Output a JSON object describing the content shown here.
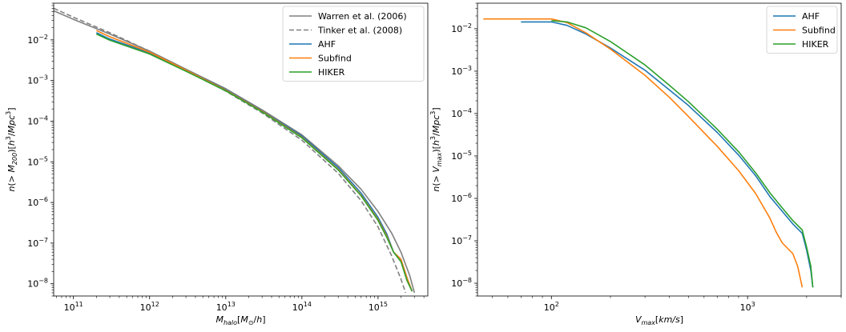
{
  "chart_data": [
    {
      "type": "line",
      "xlabel": {
        "base": "M",
        "sub": "halo",
        "rest": "[M",
        "sub2": "⊙",
        "tail": "/h]"
      },
      "ylabel": {
        "pre": "n(> M",
        "sub": "200",
        "mid": ")[h",
        "sup": "3",
        "post": "/Mpc",
        "sup2": "3",
        "end": "]"
      },
      "xscale": "log",
      "yscale": "log",
      "xlim": [
        55000000000.0,
        4500000000000000.0
      ],
      "ylim": [
        5e-09,
        0.08
      ],
      "xticks": [
        {
          "value": 100000000000.0,
          "base": "10",
          "exp": "11"
        },
        {
          "value": 1000000000000.0,
          "base": "10",
          "exp": "12"
        },
        {
          "value": 10000000000000.0,
          "base": "10",
          "exp": "13"
        },
        {
          "value": 100000000000000.0,
          "base": "10",
          "exp": "14"
        },
        {
          "value": 1000000000000000.0,
          "base": "10",
          "exp": "15"
        }
      ],
      "yticks": [
        {
          "value": 1e-08,
          "base": "10",
          "exp": "−8"
        },
        {
          "value": 1e-07,
          "base": "10",
          "exp": "−7"
        },
        {
          "value": 1e-06,
          "base": "10",
          "exp": "−6"
        },
        {
          "value": 1e-05,
          "base": "10",
          "exp": "−5"
        },
        {
          "value": 0.0001,
          "base": "10",
          "exp": "−4"
        },
        {
          "value": 0.001,
          "base": "10",
          "exp": "−3"
        },
        {
          "value": 0.01,
          "base": "10",
          "exp": "−2"
        }
      ],
      "legend": "top-right",
      "series": [
        {
          "name": "Warren et al. (2006)",
          "color": "#808080",
          "dash": "solid",
          "x": [
            55000000000.0,
            100000000000.0,
            300000000000.0,
            1000000000000.0,
            3000000000000.0,
            10000000000000.0,
            30000000000000.0,
            100000000000000.0,
            300000000000000.0,
            600000000000000.0,
            1000000000000000.0,
            1500000000000000.0,
            2000000000000000.0,
            2600000000000000.0,
            3000000000000000.0
          ],
          "y": [
            0.052,
            0.032,
            0.014,
            0.0053,
            0.0019,
            0.00063,
            0.00019,
            4.6e-05,
            8e-06,
            2.1e-06,
            6e-07,
            1.8e-07,
            6e-08,
            1.6e-08,
            6e-09
          ]
        },
        {
          "name": "Tinker et al. (2008)",
          "color": "#808080",
          "dash": "dashed",
          "x": [
            55000000000.0,
            100000000000.0,
            300000000000.0,
            1000000000000.0,
            3000000000000.0,
            10000000000000.0,
            30000000000000.0,
            100000000000000.0,
            300000000000000.0,
            600000000000000.0,
            1000000000000000.0,
            1500000000000000.0,
            2000000000000000.0,
            2300000000000000.0
          ],
          "y": [
            0.06,
            0.036,
            0.015,
            0.0053,
            0.0018,
            0.00055,
            0.00016,
            3.4e-05,
            5.2e-06,
            1.1e-06,
            2.5e-07,
            5e-08,
            1.3e-08,
            6e-09
          ]
        },
        {
          "name": "AHF",
          "color": "#1f77b4",
          "dash": "solid",
          "x": [
            200000000000.0,
            300000000000.0,
            1000000000000.0,
            3000000000000.0,
            10000000000000.0,
            30000000000000.0,
            100000000000000.0,
            300000000000000.0,
            600000000000000.0,
            1000000000000000.0,
            1300000000000000.0,
            1600000000000000.0,
            2000000000000000.0,
            2400000000000000.0,
            2800000000000000.0
          ],
          "y": [
            0.015,
            0.0105,
            0.0048,
            0.0018,
            0.0006,
            0.00018,
            4.3e-05,
            7.2e-06,
            1.7e-06,
            4.3e-07,
            1.7e-07,
            6e-08,
            4e-08,
            1.4e-08,
            6.5e-09
          ]
        },
        {
          "name": "Subfind",
          "color": "#ff7f0e",
          "dash": "solid",
          "x": [
            200000000000.0,
            300000000000.0,
            1000000000000.0,
            3000000000000.0,
            10000000000000.0,
            30000000000000.0,
            100000000000000.0,
            300000000000000.0,
            600000000000000.0,
            1000000000000000.0,
            1300000000000000.0,
            1600000000000000.0,
            2000000000000000.0,
            2400000000000000.0,
            2800000000000000.0
          ],
          "y": [
            0.017,
            0.012,
            0.005,
            0.0018,
            0.00058,
            0.000175,
            4e-05,
            6.5e-06,
            1.5e-06,
            3.8e-07,
            1.5e-07,
            6e-08,
            4e-08,
            1.4e-08,
            6.5e-09
          ]
        },
        {
          "name": "HIKER",
          "color": "#2ca02c",
          "dash": "solid",
          "x": [
            200000000000.0,
            300000000000.0,
            1000000000000.0,
            3000000000000.0,
            10000000000000.0,
            30000000000000.0,
            100000000000000.0,
            300000000000000.0,
            600000000000000.0,
            1000000000000000.0,
            1300000000000000.0,
            1600000000000000.0,
            2000000000000000.0,
            2400000000000000.0,
            2800000000000000.0
          ],
          "y": [
            0.014,
            0.0098,
            0.0045,
            0.0017,
            0.00056,
            0.00017,
            3.9e-05,
            6.3e-06,
            1.45e-06,
            3.6e-07,
            1.4e-07,
            6e-08,
            3.5e-08,
            1.2e-08,
            6.5e-09
          ]
        }
      ]
    },
    {
      "type": "line",
      "xlabel": {
        "base": "V",
        "sub": "max",
        "rest": "[km/s]"
      },
      "ylabel": {
        "pre": "n(> V",
        "sub": "max",
        "mid": ")[h",
        "sup": "3",
        "post": "/Mpc",
        "sup2": "3",
        "end": "]"
      },
      "xscale": "log",
      "yscale": "log",
      "xlim": [
        42,
        3000
      ],
      "ylim": [
        5e-09,
        0.04
      ],
      "xticks": [
        {
          "value": 100,
          "base": "10",
          "exp": "2"
        },
        {
          "value": 1000,
          "base": "10",
          "exp": "3"
        }
      ],
      "yticks": [
        {
          "value": 1e-08,
          "base": "10",
          "exp": "−8"
        },
        {
          "value": 1e-07,
          "base": "10",
          "exp": "−7"
        },
        {
          "value": 1e-06,
          "base": "10",
          "exp": "−6"
        },
        {
          "value": 1e-05,
          "base": "10",
          "exp": "−5"
        },
        {
          "value": 0.0001,
          "base": "10",
          "exp": "−4"
        },
        {
          "value": 0.001,
          "base": "10",
          "exp": "−3"
        },
        {
          "value": 0.01,
          "base": "10",
          "exp": "−2"
        }
      ],
      "legend": "top-right",
      "series": [
        {
          "name": "AHF",
          "color": "#1f77b4",
          "dash": "solid",
          "x": [
            70,
            100,
            120,
            150,
            200,
            300,
            400,
            500,
            700,
            900,
            1100,
            1300,
            1500,
            1700,
            1900,
            2000,
            2100,
            2150
          ],
          "y": [
            0.0145,
            0.0145,
            0.012,
            0.0075,
            0.0035,
            0.00105,
            0.00036,
            0.000155,
            3.6e-05,
            1.05e-05,
            3.4e-06,
            1.1e-06,
            5e-07,
            2.5e-07,
            1.5e-07,
            6e-08,
            2e-08,
            8e-09
          ]
        },
        {
          "name": "Subfind",
          "color": "#ff7f0e",
          "dash": "solid",
          "x": [
            45,
            80,
            100,
            120,
            150,
            200,
            300,
            400,
            500,
            700,
            900,
            1100,
            1300,
            1400,
            1500,
            1700,
            1800,
            1900
          ],
          "y": [
            0.017,
            0.017,
            0.017,
            0.014,
            0.008,
            0.0033,
            0.0008,
            0.00024,
            8.5e-05,
            1.7e-05,
            4.5e-06,
            1.3e-06,
            3.4e-07,
            1.6e-07,
            9e-08,
            5e-08,
            2.5e-08,
            8e-09
          ]
        },
        {
          "name": "HIKER",
          "color": "#2ca02c",
          "dash": "solid",
          "x": [
            100,
            120,
            150,
            200,
            300,
            400,
            500,
            700,
            900,
            1100,
            1300,
            1500,
            1700,
            1900,
            2000,
            2100,
            2150
          ],
          "y": [
            0.0155,
            0.0145,
            0.0105,
            0.005,
            0.0014,
            0.00046,
            0.00019,
            4.3e-05,
            1.25e-05,
            4e-06,
            1.35e-06,
            6e-07,
            3e-07,
            1.8e-07,
            7e-08,
            2.5e-08,
            8e-09
          ]
        }
      ]
    }
  ]
}
